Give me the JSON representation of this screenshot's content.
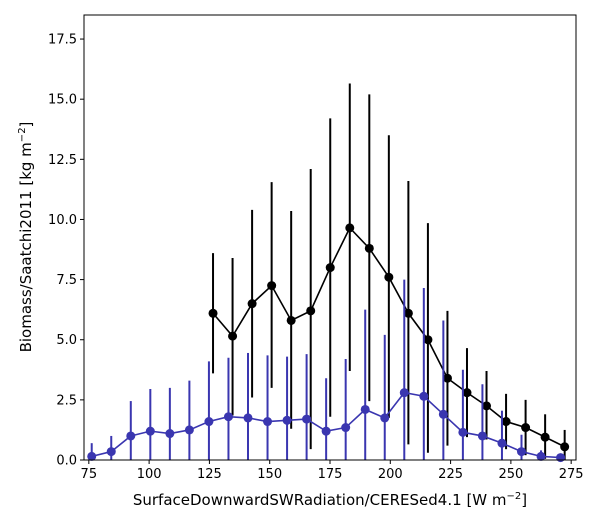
{
  "chart_data": {
    "type": "line",
    "xlabel": "SurfaceDownwardSWRadiation/CERESed4.1",
    "xlabel_unit": "[W m",
    "xlabel_exp": "−2",
    "xlabel_close": "]",
    "ylabel": "Biomass/Saatchi2011",
    "ylabel_unit": "[kg m",
    "ylabel_exp": "−2",
    "ylabel_close": "]",
    "xlim": [
      73,
      277
    ],
    "ylim": [
      0,
      18.5
    ],
    "xticks": [
      75,
      100,
      125,
      150,
      175,
      200,
      225,
      250,
      275
    ],
    "yticks": [
      0.0,
      2.5,
      5.0,
      7.5,
      10.0,
      12.5,
      15.0,
      17.5
    ],
    "xtick_labels": [
      "75",
      "100",
      "125",
      "150",
      "175",
      "200",
      "225",
      "250",
      "275"
    ],
    "ytick_labels": [
      "0.0",
      "2.5",
      "5.0",
      "7.5",
      "10.0",
      "12.5",
      "15.0",
      "17.5"
    ],
    "grid": false,
    "series": [
      {
        "color": "#000000",
        "points": [
          {
            "x": 126.5,
            "y": 6.1,
            "lo": 3.6,
            "hi": 8.6
          },
          {
            "x": 134.6,
            "y": 5.15,
            "lo": 1.85,
            "hi": 8.4
          },
          {
            "x": 142.7,
            "y": 6.5,
            "lo": 2.6,
            "hi": 10.4
          },
          {
            "x": 150.8,
            "y": 7.25,
            "lo": 3.0,
            "hi": 11.55
          },
          {
            "x": 158.9,
            "y": 5.8,
            "lo": 1.3,
            "hi": 10.35
          },
          {
            "x": 167.0,
            "y": 6.2,
            "lo": 0.45,
            "hi": 12.1
          },
          {
            "x": 175.1,
            "y": 8.0,
            "lo": 1.8,
            "hi": 14.2
          },
          {
            "x": 183.2,
            "y": 9.65,
            "lo": 3.7,
            "hi": 15.65
          },
          {
            "x": 191.3,
            "y": 8.8,
            "lo": 2.45,
            "hi": 15.2
          },
          {
            "x": 199.4,
            "y": 7.6,
            "lo": 1.75,
            "hi": 13.5
          },
          {
            "x": 207.5,
            "y": 6.1,
            "lo": 0.65,
            "hi": 11.6
          },
          {
            "x": 215.6,
            "y": 5.0,
            "lo": 0.3,
            "hi": 9.85
          },
          {
            "x": 223.7,
            "y": 3.4,
            "lo": 0.6,
            "hi": 6.2
          },
          {
            "x": 231.8,
            "y": 2.8,
            "lo": 0.95,
            "hi": 4.65
          },
          {
            "x": 239.9,
            "y": 2.25,
            "lo": 0.85,
            "hi": 3.7
          },
          {
            "x": 248.0,
            "y": 1.6,
            "lo": 0.45,
            "hi": 2.75
          },
          {
            "x": 256.1,
            "y": 1.35,
            "lo": 0.2,
            "hi": 2.5
          },
          {
            "x": 264.2,
            "y": 0.95,
            "lo": 0.05,
            "hi": 1.9
          },
          {
            "x": 272.3,
            "y": 0.55,
            "lo": 0.0,
            "hi": 1.25
          }
        ]
      },
      {
        "color": "#3a36b0",
        "points": [
          {
            "x": 76.2,
            "y": 0.15,
            "lo": 0.0,
            "hi": 0.7
          },
          {
            "x": 84.3,
            "y": 0.35,
            "lo": 0.0,
            "hi": 1.0
          },
          {
            "x": 92.4,
            "y": 1.0,
            "lo": 0.0,
            "hi": 2.45
          },
          {
            "x": 100.5,
            "y": 1.2,
            "lo": 0.0,
            "hi": 2.95
          },
          {
            "x": 108.6,
            "y": 1.1,
            "lo": 0.0,
            "hi": 3.0
          },
          {
            "x": 116.7,
            "y": 1.25,
            "lo": 0.0,
            "hi": 3.3
          },
          {
            "x": 124.8,
            "y": 1.6,
            "lo": 0.0,
            "hi": 4.1
          },
          {
            "x": 132.9,
            "y": 1.8,
            "lo": 0.0,
            "hi": 4.25
          },
          {
            "x": 141.0,
            "y": 1.75,
            "lo": 0.0,
            "hi": 4.45
          },
          {
            "x": 149.1,
            "y": 1.6,
            "lo": 0.0,
            "hi": 4.35
          },
          {
            "x": 157.2,
            "y": 1.65,
            "lo": 0.0,
            "hi": 4.3
          },
          {
            "x": 165.3,
            "y": 1.7,
            "lo": 0.0,
            "hi": 4.4
          },
          {
            "x": 173.4,
            "y": 1.2,
            "lo": 0.0,
            "hi": 3.4
          },
          {
            "x": 181.5,
            "y": 1.35,
            "lo": 0.0,
            "hi": 4.2
          },
          {
            "x": 189.6,
            "y": 2.1,
            "lo": 0.0,
            "hi": 6.25
          },
          {
            "x": 197.7,
            "y": 1.75,
            "lo": 0.0,
            "hi": 5.2
          },
          {
            "x": 205.8,
            "y": 2.8,
            "lo": 0.0,
            "hi": 7.5
          },
          {
            "x": 213.9,
            "y": 2.65,
            "lo": 0.0,
            "hi": 7.15
          },
          {
            "x": 222.0,
            "y": 1.9,
            "lo": 0.0,
            "hi": 5.8
          },
          {
            "x": 230.1,
            "y": 1.15,
            "lo": 0.0,
            "hi": 3.75
          },
          {
            "x": 238.2,
            "y": 1.0,
            "lo": 0.0,
            "hi": 3.15
          },
          {
            "x": 246.3,
            "y": 0.7,
            "lo": 0.0,
            "hi": 2.05
          },
          {
            "x": 254.4,
            "y": 0.35,
            "lo": 0.0,
            "hi": 1.05
          },
          {
            "x": 262.5,
            "y": 0.15,
            "lo": 0.0,
            "hi": 0.4
          },
          {
            "x": 270.6,
            "y": 0.1,
            "lo": 0.0,
            "hi": 0.25
          }
        ]
      }
    ]
  }
}
